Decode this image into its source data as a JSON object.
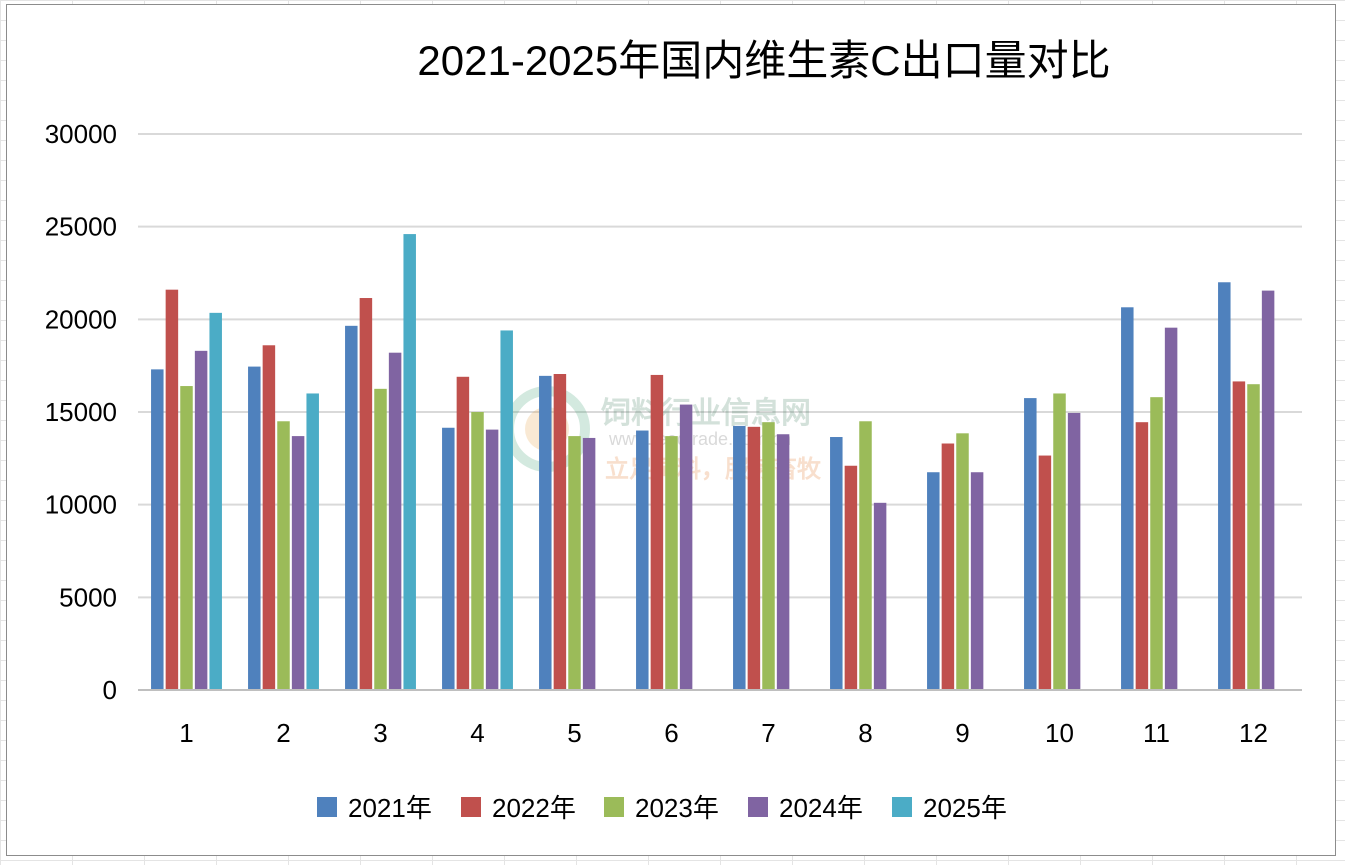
{
  "chart_data": {
    "type": "bar",
    "title": "2021-2025年国内维生素C出口量对比",
    "categories": [
      "1",
      "2",
      "3",
      "4",
      "5",
      "6",
      "7",
      "8",
      "9",
      "10",
      "11",
      "12"
    ],
    "ylim": [
      0,
      30000
    ],
    "yticks": [
      0,
      5000,
      10000,
      15000,
      20000,
      25000,
      30000
    ],
    "grid": true,
    "legend_position": "bottom",
    "series": [
      {
        "name": "2021年",
        "color": "#4f81bd",
        "values": [
          17300,
          17450,
          19650,
          14150,
          16950,
          14000,
          14250,
          13650,
          11750,
          15750,
          20650,
          22000
        ]
      },
      {
        "name": "2022年",
        "color": "#c0504d",
        "values": [
          21600,
          18600,
          21150,
          16900,
          17050,
          17000,
          14200,
          12100,
          13300,
          12650,
          14450,
          16650
        ]
      },
      {
        "name": "2023年",
        "color": "#9bbb59",
        "values": [
          16400,
          14500,
          16250,
          15000,
          13700,
          13700,
          14450,
          14500,
          13850,
          16000,
          15800,
          16500
        ]
      },
      {
        "name": "2024年",
        "color": "#8064a2",
        "values": [
          18300,
          13700,
          18200,
          14050,
          13600,
          15400,
          13800,
          10100,
          11750,
          14950,
          19550,
          21550
        ]
      },
      {
        "name": "2025年",
        "color": "#4bacc6",
        "values": [
          20350,
          16000,
          24600,
          19400,
          null,
          null,
          null,
          null,
          null,
          null,
          null,
          null
        ]
      }
    ]
  },
  "watermark": {
    "name": "饲料行业信息网",
    "url": "www.feedtrade.com.cn",
    "slogan": "立足饲料，服务畜牧"
  }
}
